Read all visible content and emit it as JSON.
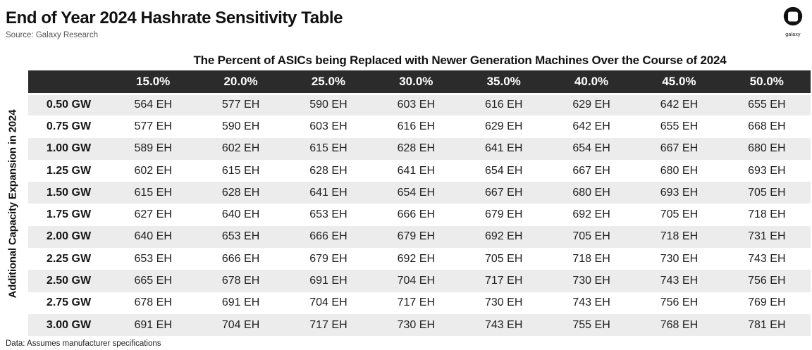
{
  "page": {
    "title": "End of Year 2024 Hashrate Sensitivity Table",
    "source": "Source: Galaxy Research",
    "footnote": "Data: Assumes manufacturer specifications"
  },
  "logo": {
    "label": "galaxy"
  },
  "chart_data": {
    "type": "table",
    "title": "End of Year 2024 Hashrate Sensitivity Table",
    "column_group_label": "The Percent of ASICs being Replaced with Newer Generation Machines Over the Course of 2024",
    "row_group_label": "Additional Capacity Expansion in 2024",
    "unit": "EH",
    "columns": [
      "15.0%",
      "20.0%",
      "25.0%",
      "30.0%",
      "35.0%",
      "40.0%",
      "45.0%",
      "50.0%"
    ],
    "rows": [
      {
        "label": "0.50 GW",
        "values": [
          "564 EH",
          "577 EH",
          "590 EH",
          "603 EH",
          "616 EH",
          "629 EH",
          "642 EH",
          "655 EH"
        ]
      },
      {
        "label": "0.75 GW",
        "values": [
          "577 EH",
          "590 EH",
          "603 EH",
          "616 EH",
          "629 EH",
          "642 EH",
          "655 EH",
          "668 EH"
        ]
      },
      {
        "label": "1.00 GW",
        "values": [
          "589 EH",
          "602 EH",
          "615 EH",
          "628 EH",
          "641 EH",
          "654 EH",
          "667 EH",
          "680 EH"
        ]
      },
      {
        "label": "1.25 GW",
        "values": [
          "602 EH",
          "615 EH",
          "628 EH",
          "641 EH",
          "654 EH",
          "667 EH",
          "680 EH",
          "693 EH"
        ]
      },
      {
        "label": "1.50 GW",
        "values": [
          "615 EH",
          "628 EH",
          "641 EH",
          "654 EH",
          "667 EH",
          "680 EH",
          "693 EH",
          "705 EH"
        ]
      },
      {
        "label": "1.75 GW",
        "values": [
          "627 EH",
          "640 EH",
          "653 EH",
          "666 EH",
          "679 EH",
          "692 EH",
          "705 EH",
          "718 EH"
        ]
      },
      {
        "label": "2.00 GW",
        "values": [
          "640 EH",
          "653 EH",
          "666 EH",
          "679 EH",
          "692 EH",
          "705 EH",
          "718 EH",
          "731 EH"
        ]
      },
      {
        "label": "2.25 GW",
        "values": [
          "653 EH",
          "666 EH",
          "679 EH",
          "692 EH",
          "705 EH",
          "718 EH",
          "730 EH",
          "743 EH"
        ]
      },
      {
        "label": "2.50 GW",
        "values": [
          "665 EH",
          "678 EH",
          "691 EH",
          "704 EH",
          "717 EH",
          "730 EH",
          "743 EH",
          "756 EH"
        ]
      },
      {
        "label": "2.75 GW",
        "values": [
          "678 EH",
          "691 EH",
          "704 EH",
          "717 EH",
          "730 EH",
          "743 EH",
          "756 EH",
          "769 EH"
        ]
      },
      {
        "label": "3.00 GW",
        "values": [
          "691 EH",
          "704 EH",
          "717 EH",
          "730 EH",
          "743 EH",
          "755 EH",
          "768 EH",
          "781 EH"
        ]
      }
    ]
  },
  "colors": {
    "header_bg": "#2b2b2b",
    "row_stripe": "#ececec",
    "row_plain": "#ffffff",
    "header_text": "#ffffff",
    "body_text": "#1f1f1f",
    "logo_fill": "#111111"
  }
}
